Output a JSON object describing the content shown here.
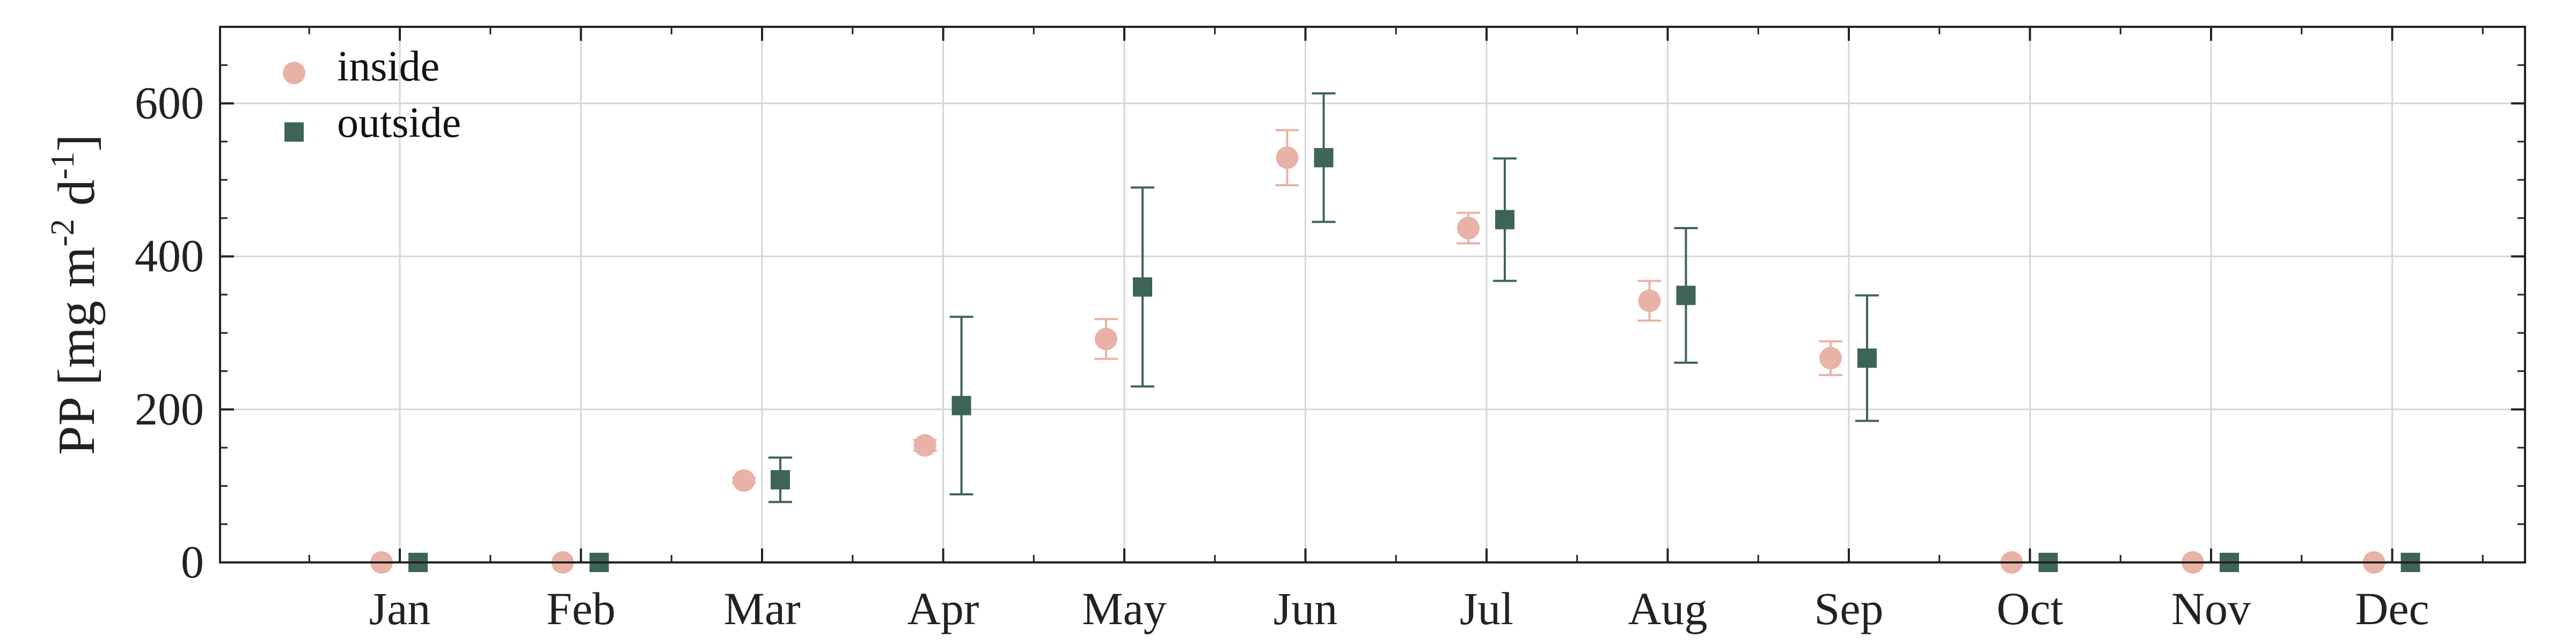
{
  "chart_data": {
    "type": "scatter",
    "categories": [
      "Jan",
      "Feb",
      "Mar",
      "Apr",
      "May",
      "Jun",
      "Jul",
      "Aug",
      "Sep",
      "Oct",
      "Nov",
      "Dec"
    ],
    "ylabel": "PP [mg m-2 d-1]",
    "ylabel_parts": {
      "base": "PP [mg m",
      "sup1": "-2",
      "mid": " d",
      "sup2": "-1",
      "end": "]"
    },
    "ylim": [
      0,
      700
    ],
    "yticks": [
      0,
      200,
      400,
      600
    ],
    "y_minor_step": 50,
    "grid": true,
    "legend_position": "top-left",
    "error_bars": true,
    "series": [
      {
        "name": "inside",
        "marker": "circle",
        "color": "#e9b2a6",
        "values": [
          0,
          0,
          107,
          153,
          292,
          529,
          437,
          342,
          267,
          0,
          0,
          0
        ],
        "error_low": [
          0,
          0,
          3,
          7,
          26,
          36,
          20,
          26,
          22,
          0,
          0,
          0
        ],
        "error_high": [
          0,
          0,
          3,
          7,
          26,
          36,
          20,
          26,
          22,
          0,
          0,
          0
        ]
      },
      {
        "name": "outside",
        "marker": "square",
        "color": "#3d6458",
        "values": [
          0,
          0,
          108,
          205,
          360,
          529,
          448,
          349,
          267,
          0,
          0,
          0
        ],
        "error_low": [
          0,
          0,
          29,
          116,
          130,
          84,
          80,
          88,
          82,
          0,
          0,
          0
        ],
        "error_high": [
          0,
          0,
          29,
          116,
          130,
          84,
          80,
          88,
          82,
          0,
          0,
          0
        ]
      }
    ]
  }
}
